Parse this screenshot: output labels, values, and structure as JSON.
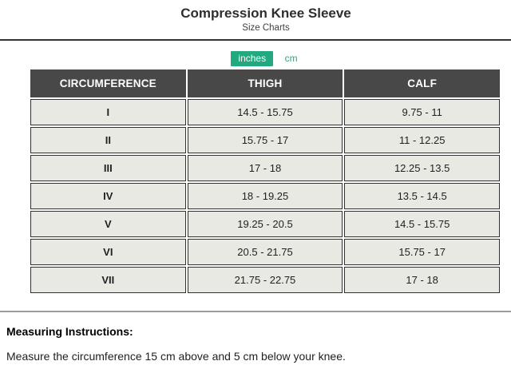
{
  "header": {
    "title": "Compression Knee Sleeve",
    "subtitle": "Size Charts"
  },
  "unit_toggle": {
    "options": [
      {
        "label": "inches",
        "selected": true
      },
      {
        "label": "cm",
        "selected": false
      }
    ]
  },
  "size_table": {
    "columns": [
      "CIRCUMFERENCE",
      "THIGH",
      "CALF"
    ],
    "rows": [
      {
        "size": "I",
        "thigh": "14.5 - 15.75",
        "calf": "9.75 - 11"
      },
      {
        "size": "II",
        "thigh": "15.75 - 17",
        "calf": "11 - 12.25"
      },
      {
        "size": "III",
        "thigh": "17 - 18",
        "calf": "12.25 - 13.5"
      },
      {
        "size": "IV",
        "thigh": "18 - 19.25",
        "calf": "13.5 - 14.5"
      },
      {
        "size": "V",
        "thigh": "19.25 - 20.5",
        "calf": "14.5 - 15.75"
      },
      {
        "size": "VI",
        "thigh": "20.5 - 21.75",
        "calf": "15.75 - 17"
      },
      {
        "size": "VII",
        "thigh": "21.75 - 22.75",
        "calf": "17 - 18"
      }
    ]
  },
  "instructions": {
    "heading": "Measuring Instructions:",
    "body": "Measure the circumference 15 cm above and 5 cm below your knee."
  },
  "colors": {
    "accent": "#23a980",
    "table_header_bg": "#484848",
    "table_row_bg": "#e9e9e3",
    "divider_dark": "#333333",
    "divider_gray": "#9c9c9a"
  }
}
